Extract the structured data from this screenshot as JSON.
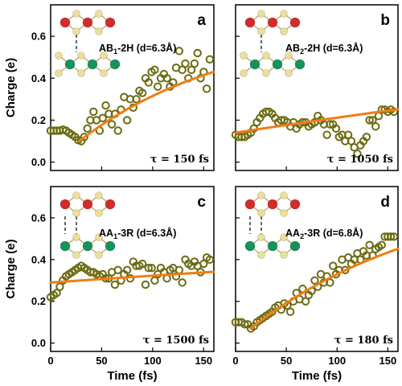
{
  "colors": {
    "marker": "#6b6b12",
    "fit": "#f07d14",
    "atom_red": "#d42a2a",
    "atom_yellow": "#ecdf9a",
    "atom_green": "#14935a"
  },
  "axes": {
    "xlabel": "Time (fs)",
    "ylabel": "Charge (e)",
    "xlim": [
      0,
      160
    ],
    "ylim": [
      -0.04,
      0.75
    ],
    "xticks": [
      0,
      50,
      100,
      150
    ],
    "yticks": [
      0.0,
      0.2,
      0.4,
      0.6
    ],
    "ytick_labels": [
      "0.0",
      "0.2",
      "0.4",
      "0.6"
    ],
    "grid": false
  },
  "chart_data": [
    {
      "type": "scatter",
      "panel": "a",
      "stack_main": "AB",
      "stack_sub": "1",
      "stack_rest": "-2H (d=6.3Å)",
      "tau_label": "τ = 150 fs",
      "structure": "ab",
      "fit": {
        "t0": 28,
        "y0": 0.1,
        "yinf": 0.665,
        "tau": 150,
        "xmax": 160
      },
      "series": [
        {
          "name": "",
          "points": [
            [
              0,
              0.15
            ],
            [
              3,
              0.15
            ],
            [
              6,
              0.15
            ],
            [
              9,
              0.15
            ],
            [
              12,
              0.155
            ],
            [
              15,
              0.15
            ],
            [
              18,
              0.14
            ],
            [
              21,
              0.13
            ],
            [
              24,
              0.12
            ],
            [
              27,
              0.105
            ],
            [
              30,
              0.1
            ],
            [
              33,
              0.12
            ],
            [
              36,
              0.16
            ],
            [
              39,
              0.2
            ],
            [
              42,
              0.24
            ],
            [
              45,
              0.2
            ],
            [
              48,
              0.15
            ],
            [
              51,
              0.21
            ],
            [
              54,
              0.27
            ],
            [
              57,
              0.23
            ],
            [
              60,
              0.18
            ],
            [
              63,
              0.23
            ],
            [
              66,
              0.15
            ],
            [
              69,
              0.25
            ],
            [
              72,
              0.31
            ],
            [
              75,
              0.2
            ],
            [
              78,
              0.3
            ],
            [
              81,
              0.26
            ],
            [
              84,
              0.3
            ],
            [
              87,
              0.34
            ],
            [
              90,
              0.33
            ],
            [
              93,
              0.4
            ],
            [
              96,
              0.38
            ],
            [
              99,
              0.43
            ],
            [
              102,
              0.44
            ],
            [
              105,
              0.36
            ],
            [
              108,
              0.4
            ],
            [
              111,
              0.42
            ],
            [
              114,
              0.4
            ],
            [
              117,
              0.36
            ],
            [
              120,
              0.38
            ],
            [
              123,
              0.45
            ],
            [
              126,
              0.53
            ],
            [
              129,
              0.44
            ],
            [
              132,
              0.47
            ],
            [
              135,
              0.4
            ],
            [
              138,
              0.44
            ],
            [
              141,
              0.47
            ],
            [
              144,
              0.52
            ],
            [
              147,
              0.4
            ],
            [
              150,
              0.43
            ],
            [
              153,
              0.35
            ],
            [
              156,
              0.49
            ]
          ]
        }
      ]
    },
    {
      "type": "scatter",
      "panel": "b",
      "stack_main": "AB",
      "stack_sub": "2",
      "stack_rest": "-2H (d=6.3Å)",
      "tau_label": "τ = 1050 fs",
      "structure": "ab",
      "fit": {
        "t0": 0,
        "y0": 0.14,
        "yinf": 0.93,
        "tau": 1050,
        "xmax": 160
      },
      "series": [
        {
          "name": "",
          "points": [
            [
              0,
              0.13
            ],
            [
              3,
              0.12
            ],
            [
              6,
              0.12
            ],
            [
              9,
              0.12
            ],
            [
              12,
              0.13
            ],
            [
              15,
              0.14
            ],
            [
              18,
              0.16
            ],
            [
              21,
              0.19
            ],
            [
              24,
              0.21
            ],
            [
              27,
              0.23
            ],
            [
              30,
              0.24
            ],
            [
              33,
              0.24
            ],
            [
              36,
              0.23
            ],
            [
              39,
              0.21
            ],
            [
              42,
              0.19
            ],
            [
              45,
              0.2
            ],
            [
              48,
              0.2
            ],
            [
              51,
              0.19
            ],
            [
              54,
              0.17
            ],
            [
              57,
              0.19
            ],
            [
              60,
              0.16
            ],
            [
              63,
              0.18
            ],
            [
              66,
              0.19
            ],
            [
              69,
              0.19
            ],
            [
              72,
              0.17
            ],
            [
              75,
              0.18
            ],
            [
              78,
              0.19
            ],
            [
              81,
              0.22
            ],
            [
              84,
              0.2
            ],
            [
              87,
              0.18
            ],
            [
              90,
              0.13
            ],
            [
              93,
              0.18
            ],
            [
              96,
              0.18
            ],
            [
              99,
              0.16
            ],
            [
              102,
              0.12
            ],
            [
              105,
              0.13
            ],
            [
              108,
              0.1
            ],
            [
              111,
              0.13
            ],
            [
              114,
              0.1
            ],
            [
              117,
              0.07
            ],
            [
              120,
              0.04
            ],
            [
              123,
              0.08
            ],
            [
              126,
              0.1
            ],
            [
              129,
              0.12
            ],
            [
              132,
              0.2
            ],
            [
              135,
              0.2
            ],
            [
              138,
              0.17
            ],
            [
              141,
              0.22
            ],
            [
              144,
              0.25
            ],
            [
              147,
              0.25
            ],
            [
              150,
              0.24
            ],
            [
              153,
              0.25
            ],
            [
              156,
              0.24
            ]
          ]
        }
      ]
    },
    {
      "type": "scatter",
      "panel": "c",
      "stack_main": "AA",
      "stack_sub": "1",
      "stack_rest": "-3R (d=6.3Å)",
      "tau_label": "τ = 1500 fs",
      "structure": "aa",
      "fit": {
        "t0": 0,
        "y0": 0.29,
        "yinf": 0.8,
        "tau": 1500,
        "xmax": 160
      },
      "series": [
        {
          "name": "",
          "points": [
            [
              0,
              0.22
            ],
            [
              3,
              0.23
            ],
            [
              6,
              0.24
            ],
            [
              9,
              0.27
            ],
            [
              12,
              0.3
            ],
            [
              15,
              0.32
            ],
            [
              18,
              0.33
            ],
            [
              21,
              0.34
            ],
            [
              24,
              0.35
            ],
            [
              27,
              0.36
            ],
            [
              30,
              0.37
            ],
            [
              33,
              0.36
            ],
            [
              36,
              0.35
            ],
            [
              39,
              0.34
            ],
            [
              42,
              0.34
            ],
            [
              45,
              0.33
            ],
            [
              48,
              0.32
            ],
            [
              51,
              0.33
            ],
            [
              54,
              0.31
            ],
            [
              57,
              0.31
            ],
            [
              60,
              0.34
            ],
            [
              63,
              0.28
            ],
            [
              66,
              0.35
            ],
            [
              69,
              0.3
            ],
            [
              72,
              0.33
            ],
            [
              75,
              0.35
            ],
            [
              78,
              0.31
            ],
            [
              81,
              0.39
            ],
            [
              84,
              0.37
            ],
            [
              87,
              0.37
            ],
            [
              90,
              0.38
            ],
            [
              93,
              0.28
            ],
            [
              96,
              0.36
            ],
            [
              99,
              0.36
            ],
            [
              102,
              0.3
            ],
            [
              105,
              0.33
            ],
            [
              108,
              0.36
            ],
            [
              111,
              0.34
            ],
            [
              114,
              0.31
            ],
            [
              117,
              0.35
            ],
            [
              120,
              0.36
            ],
            [
              123,
              0.32
            ],
            [
              126,
              0.35
            ],
            [
              129,
              0.29
            ],
            [
              132,
              0.4
            ],
            [
              135,
              0.38
            ],
            [
              138,
              0.37
            ],
            [
              141,
              0.39
            ],
            [
              144,
              0.37
            ],
            [
              147,
              0.34
            ],
            [
              150,
              0.38
            ],
            [
              153,
              0.41
            ],
            [
              156,
              0.4
            ]
          ]
        }
      ]
    },
    {
      "type": "scatter",
      "panel": "d",
      "stack_main": "AA",
      "stack_sub": "2",
      "stack_rest": "-3R (d=6.8Å)",
      "tau_label": "τ = 180 fs",
      "structure": "aa",
      "fit": {
        "t0": 15,
        "y0": 0.07,
        "yinf": 0.76,
        "tau": 180,
        "xmax": 160
      },
      "series": [
        {
          "name": "",
          "points": [
            [
              0,
              0.1
            ],
            [
              3,
              0.1
            ],
            [
              6,
              0.1
            ],
            [
              9,
              0.09
            ],
            [
              12,
              0.09
            ],
            [
              15,
              0.07
            ],
            [
              18,
              0.08
            ],
            [
              21,
              0.1
            ],
            [
              24,
              0.11
            ],
            [
              27,
              0.12
            ],
            [
              30,
              0.13
            ],
            [
              33,
              0.14
            ],
            [
              36,
              0.15
            ],
            [
              39,
              0.17
            ],
            [
              42,
              0.18
            ],
            [
              45,
              0.16
            ],
            [
              48,
              0.19
            ],
            [
              51,
              0.18
            ],
            [
              54,
              0.15
            ],
            [
              57,
              0.2
            ],
            [
              60,
              0.24
            ],
            [
              63,
              0.21
            ],
            [
              66,
              0.26
            ],
            [
              69,
              0.2
            ],
            [
              72,
              0.23
            ],
            [
              75,
              0.25
            ],
            [
              78,
              0.3
            ],
            [
              81,
              0.27
            ],
            [
              84,
              0.33
            ],
            [
              87,
              0.29
            ],
            [
              90,
              0.32
            ],
            [
              93,
              0.29
            ],
            [
              96,
              0.37
            ],
            [
              99,
              0.33
            ],
            [
              102,
              0.35
            ],
            [
              105,
              0.4
            ],
            [
              108,
              0.35
            ],
            [
              111,
              0.41
            ],
            [
              114,
              0.38
            ],
            [
              117,
              0.4
            ],
            [
              120,
              0.43
            ],
            [
              123,
              0.4
            ],
            [
              126,
              0.44
            ],
            [
              129,
              0.42
            ],
            [
              132,
              0.47
            ],
            [
              135,
              0.42
            ],
            [
              138,
              0.45
            ],
            [
              141,
              0.46
            ],
            [
              144,
              0.47
            ],
            [
              147,
              0.51
            ],
            [
              150,
              0.51
            ],
            [
              153,
              0.51
            ],
            [
              156,
              0.51
            ]
          ]
        }
      ]
    }
  ]
}
